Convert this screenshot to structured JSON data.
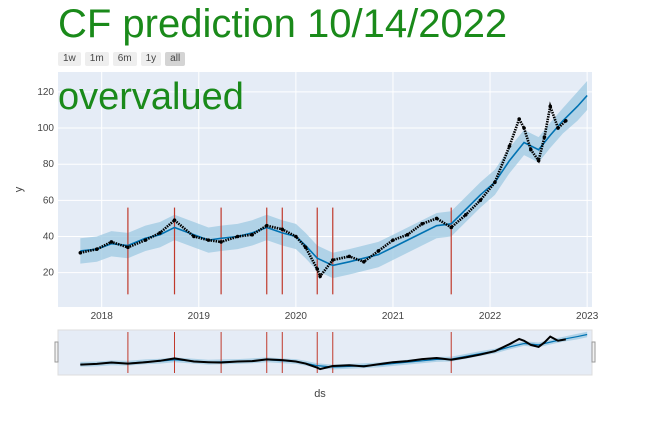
{
  "title": "CF prediction 10/14/2022",
  "annotation": "overvalued",
  "range_buttons": [
    {
      "label": "1w",
      "active": false
    },
    {
      "label": "1m",
      "active": false
    },
    {
      "label": "6m",
      "active": false
    },
    {
      "label": "1y",
      "active": false
    },
    {
      "label": "all",
      "active": true
    }
  ],
  "colors": {
    "title": "#1a8a1a",
    "forecast_line": "#0072B2",
    "band": "#9ecae1",
    "changepoint": "#c0392b",
    "points": "#000000",
    "plot_bg": "#e5ecf6"
  },
  "chart_data": {
    "type": "line",
    "title": "CF prediction 10/14/2022",
    "xlabel": "ds",
    "ylabel": "y",
    "xlim": [
      2017.55,
      2023.05
    ],
    "ylim": [
      1,
      131
    ],
    "x_ticks": [
      "2018",
      "2019",
      "2020",
      "2021",
      "2022",
      "2023"
    ],
    "y_ticks": [
      20,
      40,
      60,
      80,
      100,
      120
    ],
    "grid": true,
    "rangeslider": true,
    "changepoints": [
      2018.27,
      2018.75,
      2019.23,
      2019.7,
      2019.86,
      2020.22,
      2020.38,
      2021.6
    ],
    "series": [
      {
        "kind": "forecast",
        "x": [
          2017.78,
          2017.95,
          2018.1,
          2018.27,
          2018.45,
          2018.6,
          2018.75,
          2018.95,
          2019.1,
          2019.23,
          2019.4,
          2019.55,
          2019.7,
          2019.86,
          2020.0,
          2020.1,
          2020.22,
          2020.38,
          2020.55,
          2020.7,
          2020.85,
          2021.0,
          2021.15,
          2021.3,
          2021.45,
          2021.6,
          2021.75,
          2021.9,
          2022.05,
          2022.2,
          2022.35,
          2022.5,
          2022.62,
          2022.75,
          2022.9,
          2023.0
        ],
        "y": [
          32,
          33,
          36,
          35,
          39,
          41,
          45,
          41,
          38,
          39,
          40,
          42,
          45,
          42,
          40,
          35,
          28,
          24,
          26,
          28,
          30,
          34,
          38,
          42,
          46,
          47,
          55,
          63,
          70,
          82,
          92,
          88,
          96,
          104,
          112,
          118
        ],
        "lower": [
          25,
          26,
          29,
          28,
          32,
          34,
          38,
          34,
          31,
          32,
          33,
          35,
          38,
          35,
          33,
          28,
          21,
          17,
          19,
          21,
          23,
          27,
          31,
          35,
          39,
          40,
          48,
          56,
          63,
          75,
          85,
          81,
          89,
          97,
          104,
          110
        ],
        "upper": [
          39,
          40,
          43,
          42,
          46,
          48,
          52,
          48,
          45,
          46,
          47,
          49,
          52,
          49,
          47,
          42,
          35,
          31,
          33,
          35,
          37,
          41,
          45,
          49,
          53,
          54,
          62,
          70,
          77,
          89,
          99,
          95,
          103,
          111,
          120,
          126
        ]
      },
      {
        "kind": "observed",
        "x": [
          2017.78,
          2017.95,
          2018.1,
          2018.27,
          2018.45,
          2018.6,
          2018.75,
          2018.95,
          2019.1,
          2019.23,
          2019.4,
          2019.55,
          2019.7,
          2019.86,
          2020.0,
          2020.1,
          2020.22,
          2020.25,
          2020.38,
          2020.55,
          2020.7,
          2020.85,
          2021.0,
          2021.15,
          2021.3,
          2021.45,
          2021.6,
          2021.75,
          2021.9,
          2022.05,
          2022.2,
          2022.3,
          2022.35,
          2022.42,
          2022.5,
          2022.56,
          2022.62,
          2022.7,
          2022.78
        ],
        "y": [
          31,
          33,
          37,
          34,
          38,
          42,
          49,
          40,
          38,
          37,
          40,
          41,
          46,
          44,
          40,
          34,
          22,
          18,
          27,
          29,
          26,
          32,
          38,
          41,
          47,
          50,
          45,
          52,
          60,
          70,
          90,
          105,
          100,
          88,
          82,
          95,
          112,
          100,
          104
        ]
      }
    ]
  },
  "rangeslider_handles": [
    "left-handle",
    "right-handle"
  ]
}
